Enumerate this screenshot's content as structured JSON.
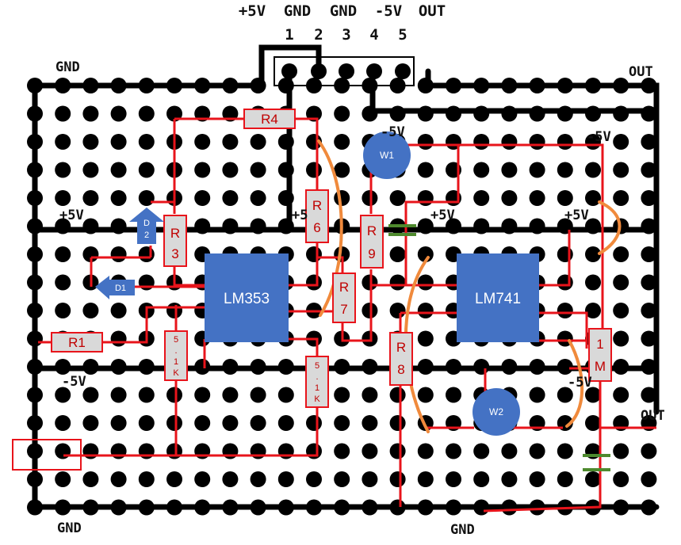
{
  "header": {
    "pin_names": [
      "+5V",
      "GND",
      "GND",
      "-5V",
      "OUT"
    ],
    "pin_numbers": [
      "1",
      "2",
      "3",
      "4",
      "5"
    ]
  },
  "rails": {
    "gnd_top": "GND",
    "out_top": "OUT",
    "minus5_top": "-5V",
    "plus5_left": "+5V",
    "plus5_mid1": "+5",
    "plus5_mid2": "+5V",
    "plus5_right": "+5V",
    "minus5_left": "-5V",
    "minus5_right": "-5V",
    "minus5_top_mid": "-5V",
    "out_right": "OUT",
    "gnd_bottom_left": "GND",
    "gnd_bottom_mid": "GND"
  },
  "components": {
    "ic1": "LM353",
    "ic2": "LM741",
    "r1": "R1",
    "r3": "R3",
    "r4": "R4",
    "r6": "R6",
    "r7": "R7",
    "r8": "R8",
    "r9": "R9",
    "r1m": "1M",
    "res_51k_a": "5.1K",
    "res_51k_b": "5.1K",
    "d1": "D1",
    "d2": "D2",
    "w1": "W1",
    "w2": "W2"
  },
  "colors": {
    "wire": "#e8141b",
    "pad": "#000000",
    "ic": "#4472c4",
    "resistor_fill": "#d9d9d9",
    "resistor_border": "#e8141b",
    "jumper": "#f08a3c",
    "capacitor": "#4e8a2e"
  }
}
